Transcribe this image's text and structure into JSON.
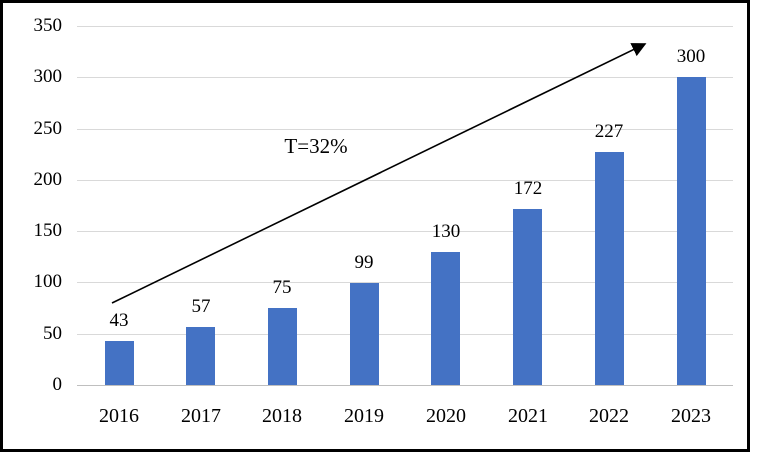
{
  "chart_data": {
    "type": "bar",
    "title": "",
    "xlabel": "",
    "ylabel": "",
    "categories": [
      "2016",
      "2017",
      "2018",
      "2019",
      "2020",
      "2021",
      "2022",
      "2023"
    ],
    "values": [
      43,
      57,
      75,
      99,
      130,
      172,
      227,
      300
    ],
    "data_labels": [
      "43",
      "57",
      "75",
      "99",
      "130",
      "172",
      "227",
      "300"
    ],
    "ylim": [
      0,
      350
    ],
    "yticks": [
      0,
      50,
      100,
      150,
      200,
      250,
      300,
      350
    ],
    "grid": true,
    "legend_position": "none",
    "annotation": "T=32%",
    "trend_arrow": true,
    "colors": {
      "bar": "#4472C4",
      "gridline": "#D9D9D9",
      "axis_line": "#BFBFBF",
      "text": "#000000",
      "frame_border": "#000000",
      "background": "#FFFFFF",
      "arrow": "#000000"
    }
  }
}
